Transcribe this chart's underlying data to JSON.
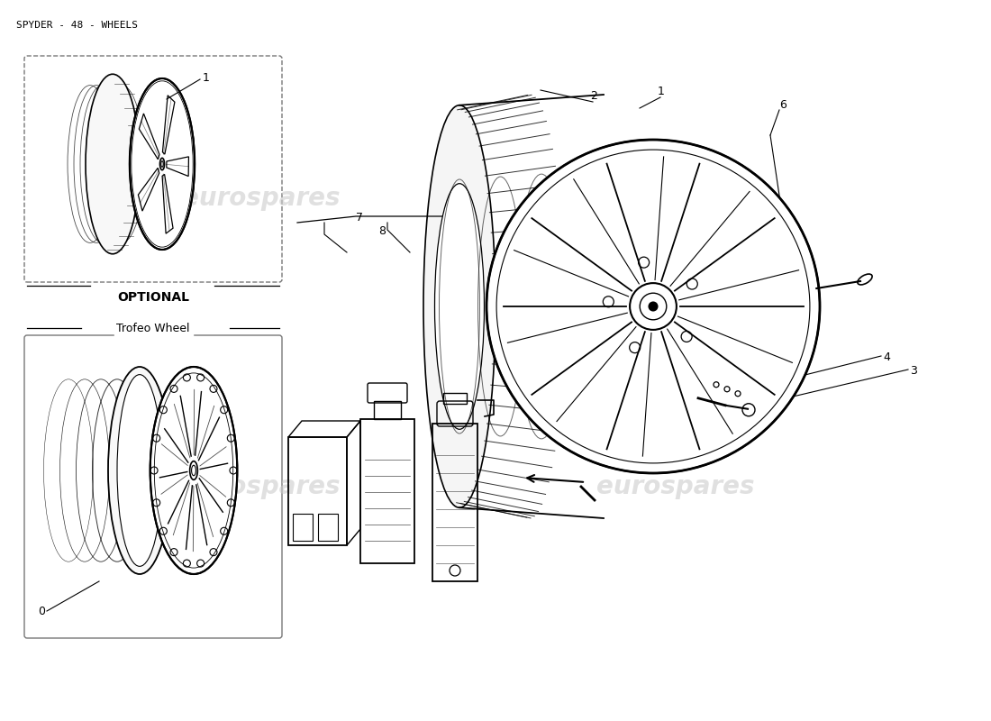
{
  "title": "SPYDER - 48 - WHEELS",
  "background_color": "#ffffff",
  "line_color": "#000000",
  "watermark_color": "#cccccc",
  "watermark_text": "eurospares",
  "title_fontsize": 8,
  "label_fontsize": 9,
  "optional_text": "OPTIONAL",
  "trofeo_text": "Trofeo Wheel"
}
